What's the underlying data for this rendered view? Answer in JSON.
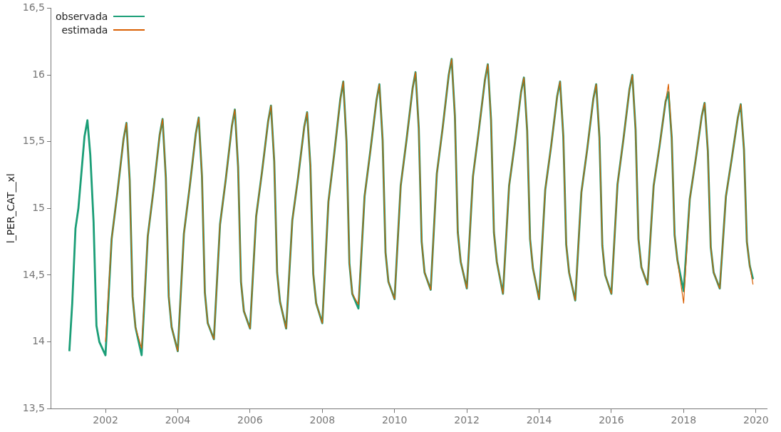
{
  "chart_data": {
    "type": "line",
    "ylabel": "l_PER_CAT__xl",
    "xlim": [
      2000.5,
      2020.3
    ],
    "ylim": [
      13.5,
      16.5
    ],
    "xticks": [
      2002,
      2004,
      2006,
      2008,
      2010,
      2012,
      2014,
      2016,
      2018,
      2020
    ],
    "yticks": [
      {
        "value": 13.5,
        "label": "13,5"
      },
      14,
      {
        "value": 14.5,
        "label": "14,5"
      },
      15,
      {
        "value": 15.5,
        "label": "15,5"
      },
      16,
      {
        "value": 16.5,
        "label": "16,5"
      }
    ],
    "grid": false,
    "legend": "top left",
    "marker": "none",
    "line_style": "solid",
    "series": [
      {
        "name": "observada",
        "color": "#1b9e77",
        "x": [
          2001.0,
          2001.08,
          2001.17,
          2001.25,
          2001.42,
          2001.5,
          2001.58,
          2001.67,
          2001.75,
          2001.83,
          2002.0,
          2002.17,
          2002.33,
          2002.5,
          2002.58,
          2002.67,
          2002.75,
          2002.83,
          2003.0,
          2003.17,
          2003.33,
          2003.5,
          2003.58,
          2003.67,
          2003.75,
          2003.83,
          2004.0,
          2004.17,
          2004.33,
          2004.5,
          2004.58,
          2004.67,
          2004.75,
          2004.83,
          2005.0,
          2005.17,
          2005.33,
          2005.5,
          2005.58,
          2005.67,
          2005.75,
          2005.83,
          2006.0,
          2006.17,
          2006.33,
          2006.5,
          2006.58,
          2006.67,
          2006.75,
          2006.83,
          2007.0,
          2007.17,
          2007.33,
          2007.5,
          2007.58,
          2007.67,
          2007.75,
          2007.83,
          2008.0,
          2008.17,
          2008.33,
          2008.5,
          2008.58,
          2008.67,
          2008.75,
          2008.83,
          2009.0,
          2009.17,
          2009.33,
          2009.5,
          2009.58,
          2009.67,
          2009.75,
          2009.83,
          2010.0,
          2010.17,
          2010.33,
          2010.5,
          2010.58,
          2010.67,
          2010.75,
          2010.83,
          2011.0,
          2011.17,
          2011.33,
          2011.5,
          2011.58,
          2011.67,
          2011.75,
          2011.83,
          2012.0,
          2012.17,
          2012.33,
          2012.5,
          2012.58,
          2012.67,
          2012.75,
          2012.83,
          2013.0,
          2013.17,
          2013.33,
          2013.5,
          2013.58,
          2013.67,
          2013.75,
          2013.83,
          2014.0,
          2014.17,
          2014.33,
          2014.5,
          2014.58,
          2014.67,
          2014.75,
          2014.83,
          2015.0,
          2015.17,
          2015.33,
          2015.5,
          2015.58,
          2015.67,
          2015.75,
          2015.83,
          2016.0,
          2016.17,
          2016.33,
          2016.5,
          2016.58,
          2016.67,
          2016.75,
          2016.83,
          2017.0,
          2017.17,
          2017.33,
          2017.5,
          2017.58,
          2017.67,
          2017.75,
          2017.83,
          2018.0,
          2018.17,
          2018.33,
          2018.5,
          2018.58,
          2018.67,
          2018.75,
          2018.83,
          2019.0,
          2019.17,
          2019.33,
          2019.5,
          2019.58,
          2019.67,
          2019.75,
          2019.83,
          2019.92
        ],
        "values": [
          13.93,
          14.29,
          14.85,
          15.0,
          15.54,
          15.66,
          15.4,
          14.9,
          14.12,
          14.0,
          13.9,
          14.77,
          15.12,
          15.52,
          15.64,
          15.21,
          14.34,
          14.11,
          13.9,
          14.79,
          15.14,
          15.55,
          15.67,
          15.23,
          14.34,
          14.11,
          13.93,
          14.81,
          15.16,
          15.56,
          15.68,
          15.24,
          14.37,
          14.14,
          14.02,
          14.88,
          15.22,
          15.62,
          15.74,
          15.31,
          14.45,
          14.23,
          14.1,
          14.94,
          15.27,
          15.65,
          15.77,
          15.35,
          14.52,
          14.3,
          14.1,
          14.91,
          15.23,
          15.61,
          15.72,
          15.32,
          14.51,
          14.29,
          14.14,
          15.05,
          15.41,
          15.82,
          15.95,
          15.5,
          14.59,
          14.36,
          14.25,
          15.09,
          15.43,
          15.81,
          15.93,
          15.51,
          14.67,
          14.45,
          14.32,
          15.17,
          15.51,
          15.9,
          16.02,
          15.6,
          14.75,
          14.52,
          14.39,
          15.26,
          15.6,
          16.0,
          16.12,
          15.69,
          14.82,
          14.6,
          14.4,
          15.24,
          15.58,
          15.96,
          16.08,
          15.66,
          14.82,
          14.6,
          14.36,
          15.17,
          15.49,
          15.87,
          15.98,
          15.58,
          14.77,
          14.55,
          14.32,
          15.14,
          15.46,
          15.84,
          15.95,
          15.54,
          14.73,
          14.52,
          14.31,
          15.12,
          15.44,
          15.82,
          15.93,
          15.53,
          14.72,
          14.5,
          14.36,
          15.18,
          15.51,
          15.89,
          16.0,
          15.59,
          14.77,
          14.56,
          14.43,
          15.17,
          15.46,
          15.8,
          15.87,
          15.53,
          14.8,
          14.61,
          14.38,
          15.07,
          15.36,
          15.69,
          15.79,
          15.43,
          14.71,
          14.52,
          14.4,
          15.09,
          15.37,
          15.68,
          15.78,
          15.44,
          14.75,
          14.57,
          14.47
        ]
      },
      {
        "name": "estimada",
        "color": "#d95f02",
        "x": [
          2002.0,
          2002.17,
          2002.33,
          2002.5,
          2002.58,
          2002.67,
          2002.75,
          2002.83,
          2003.0,
          2003.17,
          2003.33,
          2003.5,
          2003.58,
          2003.67,
          2003.75,
          2003.83,
          2004.0,
          2004.17,
          2004.33,
          2004.5,
          2004.58,
          2004.67,
          2004.75,
          2004.83,
          2005.0,
          2005.17,
          2005.33,
          2005.5,
          2005.58,
          2005.67,
          2005.75,
          2005.83,
          2006.0,
          2006.17,
          2006.33,
          2006.5,
          2006.58,
          2006.67,
          2006.75,
          2006.83,
          2007.0,
          2007.17,
          2007.33,
          2007.5,
          2007.58,
          2007.67,
          2007.75,
          2007.83,
          2008.0,
          2008.17,
          2008.33,
          2008.5,
          2008.58,
          2008.67,
          2008.75,
          2008.83,
          2009.0,
          2009.17,
          2009.33,
          2009.5,
          2009.58,
          2009.67,
          2009.75,
          2009.83,
          2010.0,
          2010.17,
          2010.33,
          2010.5,
          2010.58,
          2010.67,
          2010.75,
          2010.83,
          2011.0,
          2011.17,
          2011.33,
          2011.5,
          2011.58,
          2011.67,
          2011.75,
          2011.83,
          2012.0,
          2012.17,
          2012.33,
          2012.5,
          2012.58,
          2012.67,
          2012.75,
          2012.83,
          2013.0,
          2013.17,
          2013.33,
          2013.5,
          2013.58,
          2013.67,
          2013.75,
          2013.83,
          2014.0,
          2014.17,
          2014.33,
          2014.5,
          2014.58,
          2014.67,
          2014.75,
          2014.83,
          2015.0,
          2015.17,
          2015.33,
          2015.5,
          2015.58,
          2015.67,
          2015.75,
          2015.83,
          2016.0,
          2016.17,
          2016.33,
          2016.5,
          2016.58,
          2016.67,
          2016.75,
          2016.83,
          2017.0,
          2017.17,
          2017.33,
          2017.5,
          2017.58,
          2017.67,
          2017.75,
          2017.83,
          2018.0,
          2018.17,
          2018.33,
          2018.5,
          2018.58,
          2018.67,
          2018.75,
          2018.83,
          2019.0,
          2019.17,
          2019.33,
          2019.5,
          2019.58,
          2019.67,
          2019.75,
          2019.83,
          2019.92
        ],
        "values": [
          14.0,
          14.77,
          15.12,
          15.52,
          15.64,
          15.21,
          14.34,
          14.11,
          13.95,
          14.79,
          15.14,
          15.55,
          15.67,
          15.23,
          14.34,
          14.11,
          13.93,
          14.81,
          15.16,
          15.56,
          15.68,
          15.24,
          14.37,
          14.14,
          14.02,
          14.88,
          15.22,
          15.62,
          15.74,
          15.31,
          14.45,
          14.23,
          14.1,
          14.94,
          15.27,
          15.65,
          15.77,
          15.35,
          14.52,
          14.3,
          14.1,
          14.91,
          15.23,
          15.61,
          15.72,
          15.32,
          14.51,
          14.29,
          14.14,
          15.05,
          15.41,
          15.82,
          15.95,
          15.5,
          14.59,
          14.36,
          14.28,
          15.09,
          15.43,
          15.81,
          15.93,
          15.51,
          14.67,
          14.45,
          14.32,
          15.17,
          15.51,
          15.9,
          16.02,
          15.6,
          14.75,
          14.52,
          14.39,
          15.26,
          15.6,
          16.0,
          16.12,
          15.69,
          14.82,
          14.6,
          14.4,
          15.24,
          15.58,
          15.96,
          16.08,
          15.66,
          14.82,
          14.6,
          14.36,
          15.17,
          15.49,
          15.87,
          15.98,
          15.58,
          14.77,
          14.55,
          14.32,
          15.14,
          15.46,
          15.84,
          15.95,
          15.54,
          14.73,
          14.52,
          14.31,
          15.12,
          15.44,
          15.82,
          15.93,
          15.53,
          14.72,
          14.5,
          14.36,
          15.18,
          15.51,
          15.89,
          16.0,
          15.59,
          14.77,
          14.56,
          14.43,
          15.17,
          15.46,
          15.8,
          15.93,
          15.53,
          14.8,
          14.61,
          14.29,
          15.07,
          15.36,
          15.69,
          15.79,
          15.43,
          14.71,
          14.52,
          14.4,
          15.09,
          15.37,
          15.68,
          15.78,
          15.44,
          14.75,
          14.57,
          14.43
        ]
      }
    ]
  }
}
